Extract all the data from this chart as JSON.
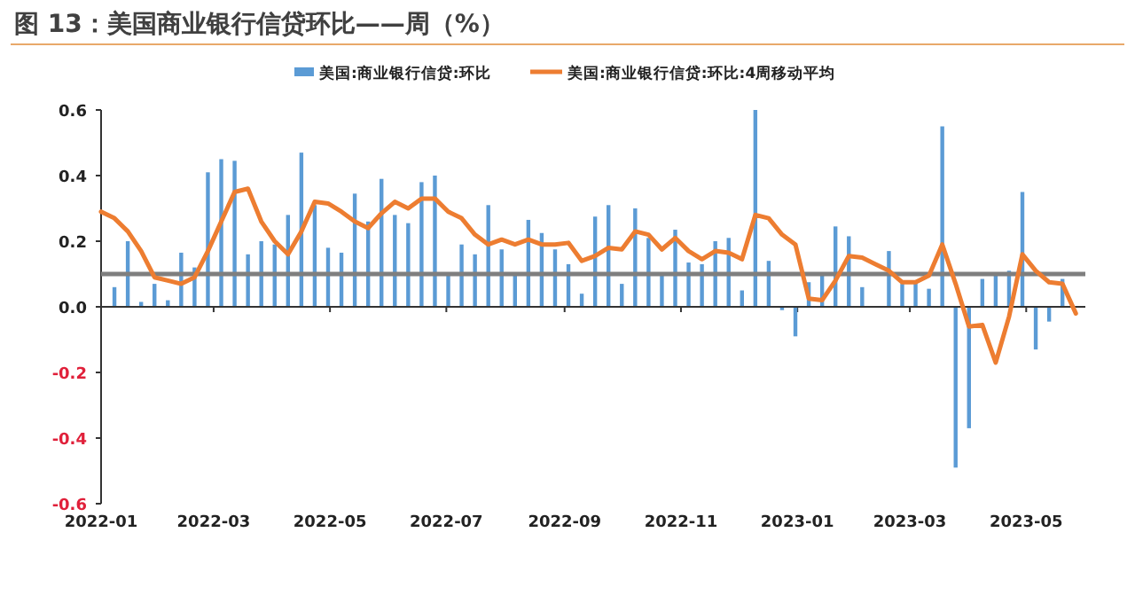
{
  "chart_data": {
    "type": "bar",
    "title": "图 13：美国商业银行信贷环比——周（%）",
    "x": [
      "2022-01-01",
      "2022-01-08",
      "2022-01-15",
      "2022-01-22",
      "2022-01-29",
      "2022-02-05",
      "2022-02-12",
      "2022-02-19",
      "2022-02-26",
      "2022-03-05",
      "2022-03-12",
      "2022-03-19",
      "2022-03-26",
      "2022-04-02",
      "2022-04-09",
      "2022-04-16",
      "2022-04-23",
      "2022-04-30",
      "2022-05-07",
      "2022-05-14",
      "2022-05-21",
      "2022-05-28",
      "2022-06-04",
      "2022-06-11",
      "2022-06-18",
      "2022-06-25",
      "2022-07-02",
      "2022-07-09",
      "2022-07-16",
      "2022-07-23",
      "2022-07-30",
      "2022-08-06",
      "2022-08-13",
      "2022-08-20",
      "2022-08-27",
      "2022-09-03",
      "2022-09-10",
      "2022-09-17",
      "2022-09-24",
      "2022-10-01",
      "2022-10-08",
      "2022-10-15",
      "2022-10-22",
      "2022-10-29",
      "2022-11-05",
      "2022-11-12",
      "2022-11-19",
      "2022-11-26",
      "2022-12-03",
      "2022-12-10",
      "2022-12-17",
      "2022-12-24",
      "2022-12-31",
      "2023-01-07",
      "2023-01-14",
      "2023-01-21",
      "2023-01-28",
      "2023-02-04",
      "2023-02-11",
      "2023-02-18",
      "2023-02-25",
      "2023-03-04",
      "2023-03-11",
      "2023-03-18",
      "2023-03-25",
      "2023-04-01",
      "2023-04-08",
      "2023-04-15",
      "2023-04-22",
      "2023-04-29",
      "2023-05-06",
      "2023-05-13",
      "2023-05-20",
      "2023-05-27"
    ],
    "series": [
      {
        "name": "美国:商业银行信贷:环比",
        "color": "#5b9bd5",
        "values": [
          null,
          0.06,
          0.2,
          0.015,
          0.07,
          0.02,
          0.165,
          0.12,
          0.41,
          0.45,
          0.445,
          0.16,
          0.2,
          0.19,
          0.28,
          0.47,
          0.31,
          0.18,
          0.165,
          0.345,
          0.26,
          0.39,
          0.28,
          0.255,
          0.38,
          0.4,
          0.1,
          0.19,
          0.16,
          0.31,
          0.175,
          0.1,
          0.265,
          0.225,
          0.175,
          0.13,
          0.04,
          0.275,
          0.31,
          0.07,
          0.3,
          0.21,
          0.1,
          0.235,
          0.135,
          0.13,
          0.2,
          0.21,
          0.05,
          0.6,
          0.14,
          -0.01,
          -0.09,
          0.075,
          0.1,
          0.245,
          0.215,
          0.06,
          0,
          0.17,
          0.07,
          0.08,
          0.055,
          0.55,
          -0.49,
          -0.37,
          0.085,
          0.1,
          0.11,
          0.35,
          -0.13,
          -0.045,
          0.085,
          null
        ]
      },
      {
        "name": "美国:商业银行信贷:环比:4周移动平均",
        "type": "line",
        "color": "#ed7d31",
        "values": [
          0.29,
          0.27,
          0.23,
          0.17,
          0.09,
          0.08,
          0.07,
          0.09,
          0.17,
          0.26,
          0.35,
          0.36,
          0.26,
          0.2,
          0.16,
          0.23,
          0.32,
          0.315,
          0.29,
          0.26,
          0.24,
          0.285,
          0.32,
          0.3,
          0.33,
          0.33,
          0.29,
          0.27,
          0.22,
          0.19,
          0.205,
          0.19,
          0.205,
          0.19,
          0.19,
          0.195,
          0.14,
          0.155,
          0.18,
          0.175,
          0.23,
          0.22,
          0.175,
          0.21,
          0.17,
          0.145,
          0.17,
          0.165,
          0.145,
          0.28,
          0.27,
          0.22,
          0.19,
          0.025,
          0.02,
          0.08,
          0.155,
          0.15,
          0.13,
          0.11,
          0.075,
          0.075,
          0.095,
          0.19,
          0.07,
          -0.06,
          -0.055,
          -0.17,
          -0.03,
          0.16,
          0.11,
          0.075,
          0.07,
          -0.02
        ]
      }
    ],
    "xlim": [
      "2022-01-01",
      "2023-06-01"
    ],
    "xticks": [
      {
        "value": "2022-01-01",
        "label": "2022-01"
      },
      {
        "value": "2022-03-01",
        "label": "2022-03"
      },
      {
        "value": "2022-05-01",
        "label": "2022-05"
      },
      {
        "value": "2022-07-01",
        "label": "2022-07"
      },
      {
        "value": "2022-09-01",
        "label": "2022-09"
      },
      {
        "value": "2022-11-01",
        "label": "2022-11"
      },
      {
        "value": "2023-01-01",
        "label": "2023-01"
      },
      {
        "value": "2023-03-01",
        "label": "2023-03"
      },
      {
        "value": "2023-05-01",
        "label": "2023-05"
      }
    ],
    "ylim": [
      -0.6,
      0.6
    ],
    "yticks": [
      {
        "value": -0.6,
        "label": "-0.6"
      },
      {
        "value": -0.4,
        "label": "-0.4"
      },
      {
        "value": -0.2,
        "label": "-0.2"
      },
      {
        "value": 0,
        "label": "0.0"
      },
      {
        "value": 0.2,
        "label": "0.2"
      },
      {
        "value": 0.4,
        "label": "0.4"
      },
      {
        "value": 0.6,
        "label": "0.6"
      }
    ],
    "ref_lines": [
      {
        "axis": "y",
        "value": 0.1,
        "color": "#7f7f7f"
      }
    ],
    "legend": "top"
  }
}
